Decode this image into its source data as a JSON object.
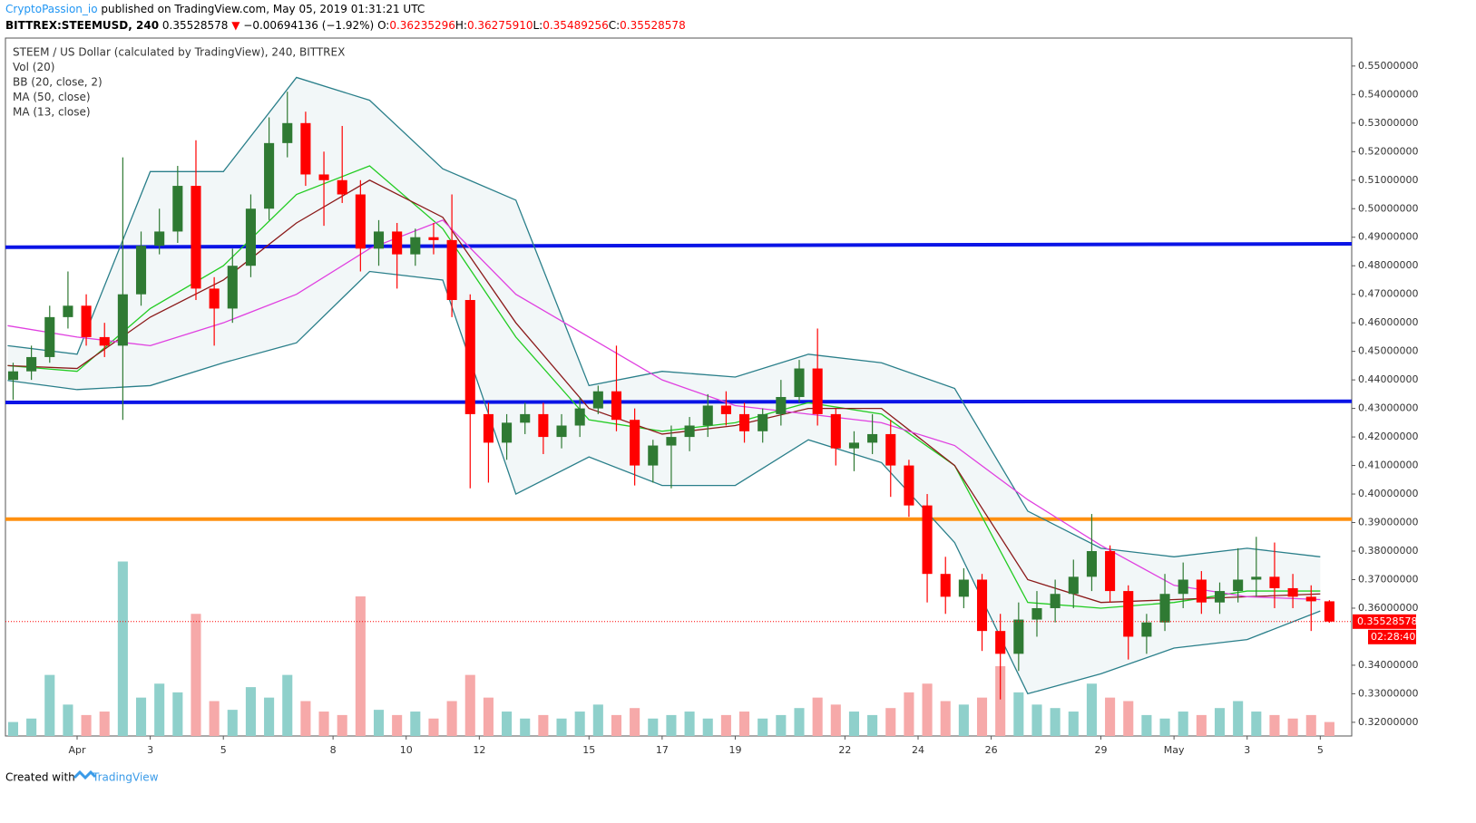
{
  "header": {
    "author": "CryptoPassion_io",
    "published": "published on TradingView.com, May 05, 2019 01:31:21 UTC",
    "symbol": "BITTREX:STEEMUSD, 240",
    "price": "0.35528578",
    "arrow": "▼",
    "change": "−0.00694136 (−1.92%)",
    "ohlc": [
      {
        "label": "O:",
        "value": "0.36235296"
      },
      {
        "label": "H:",
        "value": "0.36275910"
      },
      {
        "label": "L:",
        "value": "0.35489256"
      },
      {
        "label": "C:",
        "value": "0.35528578"
      }
    ]
  },
  "footer": {
    "created": "Created with",
    "brand": "TradingView"
  },
  "chart_data": {
    "type": "candlestick",
    "legend": [
      "STEEM / US Dollar (calculated by TradingView), 240, BITTREX",
      "Vol (20)",
      "BB (20, close, 2)",
      "MA (50, close)",
      "MA (13, close)"
    ],
    "xlim": [
      -1.96,
      34.86
    ],
    "xticks": [
      {
        "value": 0,
        "label": "Apr"
      },
      {
        "value": 2,
        "label": "3"
      },
      {
        "value": 4,
        "label": "5"
      },
      {
        "value": 7,
        "label": "8"
      },
      {
        "value": 9,
        "label": "10"
      },
      {
        "value": 11,
        "label": "12"
      },
      {
        "value": 14,
        "label": "15"
      },
      {
        "value": 16,
        "label": "17"
      },
      {
        "value": 18,
        "label": "19"
      },
      {
        "value": 21,
        "label": "22"
      },
      {
        "value": 23,
        "label": "24"
      },
      {
        "value": 25,
        "label": "26"
      },
      {
        "value": 28,
        "label": "29"
      },
      {
        "value": 30,
        "label": "May"
      },
      {
        "value": 32,
        "label": "3"
      },
      {
        "value": 34,
        "label": "5"
      }
    ],
    "ylim": [
      0.3152,
      0.5598
    ],
    "yticks": [
      {
        "value": 0.32,
        "label": "0.32000000"
      },
      {
        "value": 0.33,
        "label": "0.33000000"
      },
      {
        "value": 0.34,
        "label": "0.34000000"
      },
      {
        "value": 0.36,
        "label": "0.36000000"
      },
      {
        "value": 0.37,
        "label": "0.37000000"
      },
      {
        "value": 0.38,
        "label": "0.38000000"
      },
      {
        "value": 0.39,
        "label": "0.39000000"
      },
      {
        "value": 0.4,
        "label": "0.40000000"
      },
      {
        "value": 0.41,
        "label": "0.41000000"
      },
      {
        "value": 0.42,
        "label": "0.42000000"
      },
      {
        "value": 0.43,
        "label": "0.43000000"
      },
      {
        "value": 0.44,
        "label": "0.44000000"
      },
      {
        "value": 0.45,
        "label": "0.45000000"
      },
      {
        "value": 0.46,
        "label": "0.46000000"
      },
      {
        "value": 0.47,
        "label": "0.47000000"
      },
      {
        "value": 0.48,
        "label": "0.48000000"
      },
      {
        "value": 0.49,
        "label": "0.49000000"
      },
      {
        "value": 0.5,
        "label": "0.50000000"
      },
      {
        "value": 0.51,
        "label": "0.51000000"
      },
      {
        "value": 0.52,
        "label": "0.52000000"
      },
      {
        "value": 0.53,
        "label": "0.53000000"
      },
      {
        "value": 0.54,
        "label": "0.54000000"
      },
      {
        "value": 0.55,
        "label": "0.55000000"
      }
    ],
    "grid": false,
    "up_color": "#2f7a33",
    "down_color": "#ff0000",
    "volume_up_color": "#8fd0cb",
    "volume_down_color": "#f6a9a9",
    "candles": {
      "x": [
        -1.75,
        -1.25,
        -0.75,
        -0.25,
        0.25,
        0.75,
        1.25,
        1.75,
        2.25,
        2.75,
        3.25,
        3.75,
        4.25,
        4.75,
        5.25,
        5.75,
        6.25,
        6.75,
        7.25,
        7.75,
        8.25,
        8.75,
        9.25,
        9.75,
        10.25,
        10.75,
        11.25,
        11.75,
        12.25,
        12.75,
        13.25,
        13.75,
        14.25,
        14.75,
        15.25,
        15.75,
        16.25,
        16.75,
        17.25,
        17.75,
        18.25,
        18.75,
        19.25,
        19.75,
        20.25,
        20.75,
        21.25,
        21.75,
        22.25,
        22.75,
        23.25,
        23.75,
        24.25,
        24.75,
        25.25,
        25.75,
        26.25,
        26.75,
        27.25,
        27.75,
        28.25,
        28.75,
        29.25,
        29.75,
        30.25,
        30.75,
        31.25,
        31.75,
        32.25,
        32.75,
        33.25,
        33.75,
        34.25
      ],
      "open": [
        0.44,
        0.443,
        0.448,
        0.462,
        0.466,
        0.455,
        0.452,
        0.47,
        0.487,
        0.492,
        0.508,
        0.472,
        0.465,
        0.48,
        0.5,
        0.523,
        0.53,
        0.512,
        0.51,
        0.505,
        0.486,
        0.492,
        0.484,
        0.49,
        0.489,
        0.468,
        0.428,
        0.418,
        0.425,
        0.428,
        0.42,
        0.424,
        0.43,
        0.436,
        0.426,
        0.41,
        0.417,
        0.42,
        0.424,
        0.431,
        0.428,
        0.422,
        0.428,
        0.434,
        0.444,
        0.428,
        0.416,
        0.418,
        0.421,
        0.41,
        0.396,
        0.372,
        0.364,
        0.37,
        0.352,
        0.344,
        0.356,
        0.36,
        0.365,
        0.371,
        0.38,
        0.366,
        0.35,
        0.355,
        0.365,
        0.37,
        0.362,
        0.366,
        0.37,
        0.371,
        0.367,
        0.364,
        0.3624
      ],
      "high": [
        0.446,
        0.452,
        0.466,
        0.478,
        0.47,
        0.46,
        0.518,
        0.492,
        0.5,
        0.515,
        0.524,
        0.476,
        0.486,
        0.505,
        0.532,
        0.541,
        0.534,
        0.52,
        0.529,
        0.51,
        0.496,
        0.495,
        0.493,
        0.495,
        0.505,
        0.47,
        0.432,
        0.428,
        0.432,
        0.432,
        0.428,
        0.434,
        0.438,
        0.452,
        0.43,
        0.419,
        0.424,
        0.427,
        0.435,
        0.436,
        0.432,
        0.43,
        0.44,
        0.447,
        0.458,
        0.43,
        0.422,
        0.428,
        0.426,
        0.412,
        0.4,
        0.378,
        0.374,
        0.372,
        0.358,
        0.362,
        0.366,
        0.37,
        0.377,
        0.393,
        0.382,
        0.368,
        0.358,
        0.372,
        0.376,
        0.373,
        0.369,
        0.381,
        0.385,
        0.383,
        0.372,
        0.368,
        0.3628
      ],
      "low": [
        0.433,
        0.44,
        0.446,
        0.458,
        0.452,
        0.448,
        0.426,
        0.466,
        0.484,
        0.488,
        0.468,
        0.452,
        0.46,
        0.476,
        0.496,
        0.518,
        0.508,
        0.494,
        0.502,
        0.478,
        0.48,
        0.472,
        0.48,
        0.484,
        0.462,
        0.402,
        0.404,
        0.412,
        0.421,
        0.414,
        0.416,
        0.42,
        0.428,
        0.422,
        0.403,
        0.404,
        0.402,
        0.415,
        0.42,
        0.424,
        0.418,
        0.418,
        0.424,
        0.432,
        0.424,
        0.41,
        0.408,
        0.414,
        0.399,
        0.392,
        0.362,
        0.358,
        0.36,
        0.345,
        0.328,
        0.338,
        0.35,
        0.355,
        0.36,
        0.366,
        0.362,
        0.342,
        0.344,
        0.352,
        0.36,
        0.358,
        0.358,
        0.362,
        0.364,
        0.36,
        0.36,
        0.352,
        0.3549
      ],
      "close": [
        0.443,
        0.448,
        0.462,
        0.466,
        0.455,
        0.452,
        0.47,
        0.487,
        0.492,
        0.508,
        0.472,
        0.465,
        0.48,
        0.5,
        0.523,
        0.53,
        0.512,
        0.51,
        0.505,
        0.486,
        0.492,
        0.484,
        0.49,
        0.489,
        0.468,
        0.428,
        0.418,
        0.425,
        0.428,
        0.42,
        0.424,
        0.43,
        0.436,
        0.426,
        0.41,
        0.417,
        0.42,
        0.424,
        0.431,
        0.428,
        0.422,
        0.428,
        0.434,
        0.444,
        0.428,
        0.416,
        0.418,
        0.421,
        0.41,
        0.396,
        0.372,
        0.364,
        0.37,
        0.352,
        0.344,
        0.356,
        0.36,
        0.365,
        0.371,
        0.38,
        0.366,
        0.35,
        0.355,
        0.365,
        0.37,
        0.362,
        0.366,
        0.37,
        0.371,
        0.367,
        0.364,
        0.3624,
        0.3553
      ],
      "volume": [
        8,
        10,
        35,
        18,
        12,
        14,
        100,
        22,
        30,
        25,
        70,
        20,
        15,
        28,
        22,
        35,
        20,
        14,
        12,
        80,
        15,
        12,
        14,
        10,
        20,
        35,
        22,
        14,
        10,
        12,
        10,
        14,
        18,
        12,
        16,
        10,
        12,
        14,
        10,
        12,
        14,
        10,
        12,
        16,
        22,
        18,
        14,
        12,
        16,
        25,
        30,
        20,
        18,
        22,
        40,
        25,
        18,
        16,
        14,
        30,
        22,
        20,
        12,
        10,
        14,
        12,
        16,
        20,
        14,
        12,
        10,
        12,
        8
      ]
    },
    "volume_ylim": [
      0,
      100
    ],
    "indicators": {
      "x": [
        -1.9,
        0,
        2,
        4,
        6,
        8,
        10,
        12,
        14,
        16,
        18,
        20,
        22,
        24,
        26,
        28,
        30,
        32,
        34
      ],
      "series": [
        {
          "name": "BB upper",
          "color": "#2a7f8a",
          "values": [
            0.452,
            0.449,
            0.513,
            0.513,
            0.546,
            0.538,
            0.514,
            0.503,
            0.438,
            0.443,
            0.441,
            0.449,
            0.446,
            0.437,
            0.394,
            0.381,
            0.378,
            0.381,
            0.378
          ]
        },
        {
          "name": "BB lower",
          "color": "#2a7f8a",
          "values": [
            0.4398,
            0.4366,
            0.438,
            0.446,
            0.453,
            0.478,
            0.475,
            0.4,
            0.413,
            0.403,
            0.403,
            0.419,
            0.411,
            0.383,
            0.33,
            0.337,
            0.346,
            0.349,
            0.359
          ]
        },
        {
          "name": "BB basis",
          "color": "#22cc22",
          "values": [
            0.445,
            0.443,
            0.465,
            0.48,
            0.505,
            0.515,
            0.493,
            0.455,
            0.426,
            0.422,
            0.425,
            0.432,
            0.428,
            0.41,
            0.362,
            0.36,
            0.362,
            0.366,
            0.366
          ]
        },
        {
          "name": "MA 13",
          "color": "#8b1a1a",
          "values": [
            0.445,
            0.444,
            0.462,
            0.475,
            0.495,
            0.51,
            0.497,
            0.46,
            0.43,
            0.421,
            0.424,
            0.43,
            0.43,
            0.41,
            0.37,
            0.362,
            0.363,
            0.364,
            0.365
          ]
        },
        {
          "name": "MA 50",
          "color": "#e040e0",
          "values": [
            0.459,
            0.455,
            0.452,
            0.46,
            0.47,
            0.486,
            0.496,
            0.47,
            0.455,
            0.44,
            0.431,
            0.428,
            0.425,
            0.417,
            0.398,
            0.382,
            0.368,
            0.364,
            0.363
          ]
        }
      ]
    },
    "levels": [
      {
        "color": "#0a14e6",
        "values": [
          0.4865,
          0.4877
        ]
      },
      {
        "color": "#0a14e6",
        "values": [
          0.4321,
          0.4325
        ]
      },
      {
        "color": "#ff9010",
        "values": [
          0.3912,
          0.3912
        ]
      }
    ],
    "last_price": {
      "value": 0.35528578,
      "label": "0.35528578"
    },
    "countdown": "02:28:40"
  }
}
